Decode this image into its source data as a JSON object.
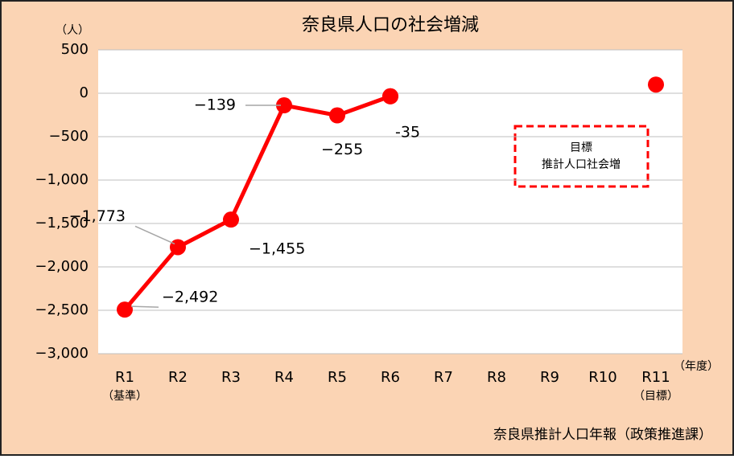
{
  "chart_data": {
    "type": "line",
    "title": "奈良県人口の社会増減",
    "y_unit": "（人）",
    "x_unit": "（年度）",
    "source": "奈良県推計人口年報（政策推進課）",
    "annotation": [
      "目標",
      "推計人口社会増"
    ],
    "categories": [
      "R1",
      "R2",
      "R3",
      "R4",
      "R5",
      "R6",
      "R7",
      "R8",
      "R9",
      "R10",
      "R11"
    ],
    "category_notes": [
      "（基準）",
      null,
      null,
      null,
      null,
      null,
      null,
      null,
      null,
      null,
      "（目標）"
    ],
    "series": [
      {
        "color": "#ff0000",
        "style": "solid",
        "values": [
          -2492,
          -1773,
          -1455,
          -139,
          -255,
          -35,
          null,
          null,
          null,
          null,
          null
        ],
        "value_labels": [
          "−2,492",
          "−1,773",
          "−1,455",
          "−139",
          "−255",
          "-35",
          null,
          null,
          null,
          null,
          null
        ]
      },
      {
        "color": "#ff0000",
        "style": "dotted",
        "values": [
          null,
          null,
          null,
          null,
          null,
          -35,
          null,
          null,
          null,
          null,
          100
        ]
      }
    ],
    "ylim": [
      -3000,
      500
    ],
    "yticks": [
      {
        "value": -3000,
        "label": "−3,000"
      },
      {
        "value": -2500,
        "label": "−2,500"
      },
      {
        "value": -2000,
        "label": "−2,000"
      },
      {
        "value": -1500,
        "label": "−1,500"
      },
      {
        "value": -1000,
        "label": "−1,000"
      },
      {
        "value": -500,
        "label": "−500"
      },
      0,
      500
    ],
    "grid": true,
    "background": "#fbd4b4"
  }
}
